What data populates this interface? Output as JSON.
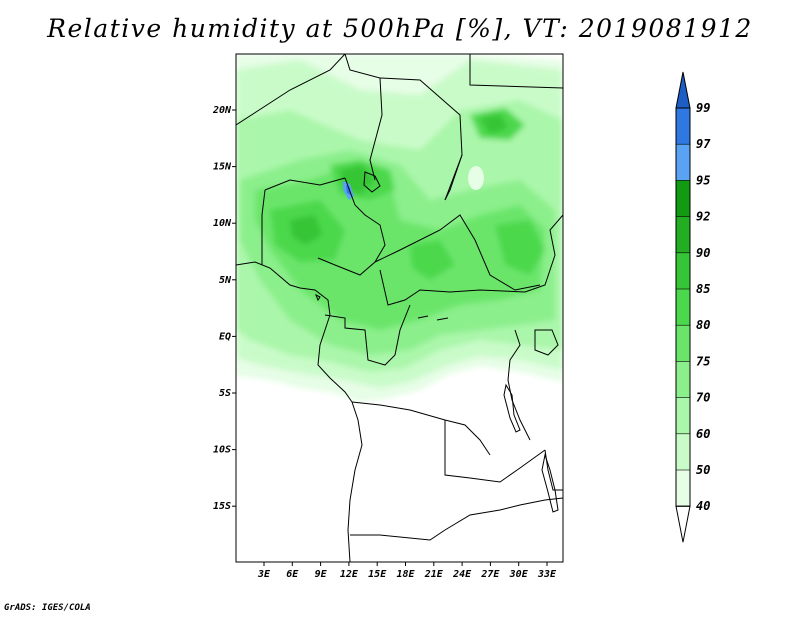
{
  "title": "Relative humidity at 500hPa [%], VT: 2019081912",
  "credit": "GrADS: IGES/COLA",
  "map": {
    "lon_labels": [
      "3E",
      "6E",
      "9E",
      "12E",
      "15E",
      "18E",
      "21E",
      "24E",
      "27E",
      "30E",
      "33E"
    ],
    "lat_labels": [
      "20N",
      "15N",
      "10N",
      "5N",
      "EQ",
      "5S",
      "10S",
      "15S"
    ],
    "extent": {
      "lon_min": 0,
      "lon_max": 35,
      "lat_min": -20,
      "lat_max": 25
    }
  },
  "colorbar": {
    "levels": [
      "99",
      "97",
      "95",
      "92",
      "90",
      "85",
      "80",
      "75",
      "70",
      "60",
      "50",
      "40"
    ],
    "colors": [
      "#1c5ec6",
      "#2f78e2",
      "#5aa3f4",
      "#139a13",
      "#23ad23",
      "#36c536",
      "#4cd84c",
      "#6ae56a",
      "#8bef8b",
      "#aaf6aa",
      "#c9fbc9",
      "#e6fde6"
    ],
    "units": "%"
  }
}
